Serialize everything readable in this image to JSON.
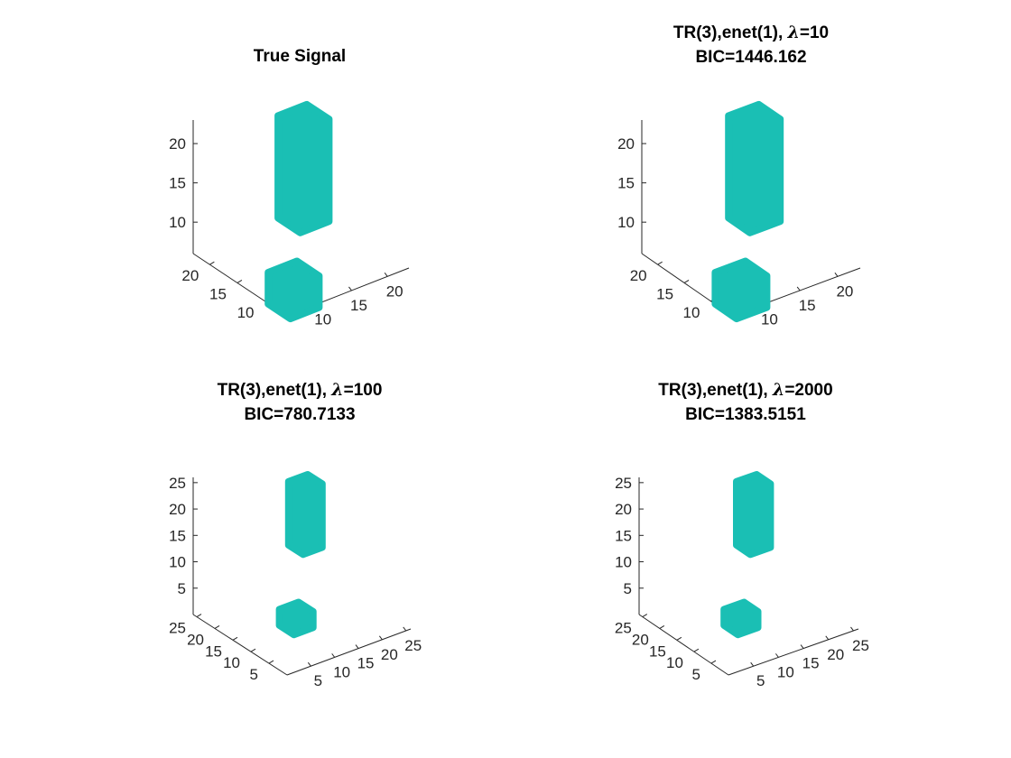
{
  "chart_data": [
    {
      "type": "3d-isosurface",
      "title_lines": [
        "True Signal"
      ],
      "title_segments": [
        [
          {
            "text": "True Signal"
          }
        ]
      ],
      "x_ticks": [
        "10",
        "15",
        "20"
      ],
      "y_ticks": [
        "10",
        "15",
        "20"
      ],
      "z_ticks": [
        "10",
        "15",
        "20"
      ],
      "color": "#1abfb4",
      "blobs": [
        {
          "name": "tall-column",
          "x": [
            14,
            18
          ],
          "y": [
            14,
            18
          ],
          "z": [
            10,
            23
          ]
        },
        {
          "name": "small-cube",
          "x": [
            8,
            12
          ],
          "y": [
            8,
            12
          ],
          "z": [
            4,
            8
          ]
        }
      ]
    },
    {
      "type": "3d-isosurface",
      "title_lines": [
        "TR(3),enet(1), λ=10",
        "BIC=1446.162"
      ],
      "title_segments": [
        [
          {
            "text": "TR(3),enet(1), "
          },
          {
            "text": "λ",
            "italic": true
          },
          {
            "text": "=10"
          }
        ],
        [
          {
            "text": "BIC=1446.162"
          }
        ]
      ],
      "x_ticks": [
        "10",
        "15",
        "20"
      ],
      "y_ticks": [
        "10",
        "15",
        "20"
      ],
      "z_ticks": [
        "10",
        "15",
        "20"
      ],
      "color": "#1abfb4",
      "blobs": [
        {
          "name": "tall-column",
          "x": [
            14,
            18
          ],
          "y": [
            14,
            18
          ],
          "z": [
            10,
            23
          ]
        },
        {
          "name": "small-cube",
          "x": [
            8,
            12
          ],
          "y": [
            8,
            12
          ],
          "z": [
            4,
            8
          ]
        }
      ]
    },
    {
      "type": "3d-isosurface",
      "title_lines": [
        "TR(3),enet(1), λ=100",
        "BIC=780.7133"
      ],
      "title_segments": [
        [
          {
            "text": "TR(3),enet(1), "
          },
          {
            "text": "λ",
            "italic": true
          },
          {
            "text": "=100"
          }
        ],
        [
          {
            "text": "BIC=780.7133"
          }
        ]
      ],
      "x_ticks": [
        "5",
        "10",
        "15",
        "20",
        "25"
      ],
      "y_ticks": [
        "5",
        "10",
        "15",
        "20",
        "25"
      ],
      "z_ticks": [
        "5",
        "10",
        "15",
        "20",
        "25"
      ],
      "color": "#1abfb4",
      "blobs": [
        {
          "name": "tall-column",
          "x": [
            14,
            18
          ],
          "y": [
            14,
            18
          ],
          "z": [
            12,
            24
          ]
        },
        {
          "name": "small-cube",
          "x": [
            6,
            10
          ],
          "y": [
            6,
            10
          ],
          "z": [
            3,
            6
          ]
        }
      ]
    },
    {
      "type": "3d-isosurface",
      "title_lines": [
        "TR(3),enet(1), λ=2000",
        "BIC=1383.5151"
      ],
      "title_segments": [
        [
          {
            "text": "TR(3),enet(1), "
          },
          {
            "text": "λ",
            "italic": true
          },
          {
            "text": "=2000"
          }
        ],
        [
          {
            "text": "BIC=1383.5151"
          }
        ]
      ],
      "x_ticks": [
        "5",
        "10",
        "15",
        "20",
        "25"
      ],
      "y_ticks": [
        "5",
        "10",
        "15",
        "20",
        "25"
      ],
      "z_ticks": [
        "5",
        "10",
        "15",
        "20",
        "25"
      ],
      "color": "#1abfb4",
      "blobs": [
        {
          "name": "tall-column",
          "x": [
            14,
            18
          ],
          "y": [
            14,
            18
          ],
          "z": [
            12,
            24
          ]
        },
        {
          "name": "small-cube",
          "x": [
            6,
            10
          ],
          "y": [
            6,
            10
          ],
          "z": [
            3,
            6
          ]
        }
      ]
    }
  ]
}
